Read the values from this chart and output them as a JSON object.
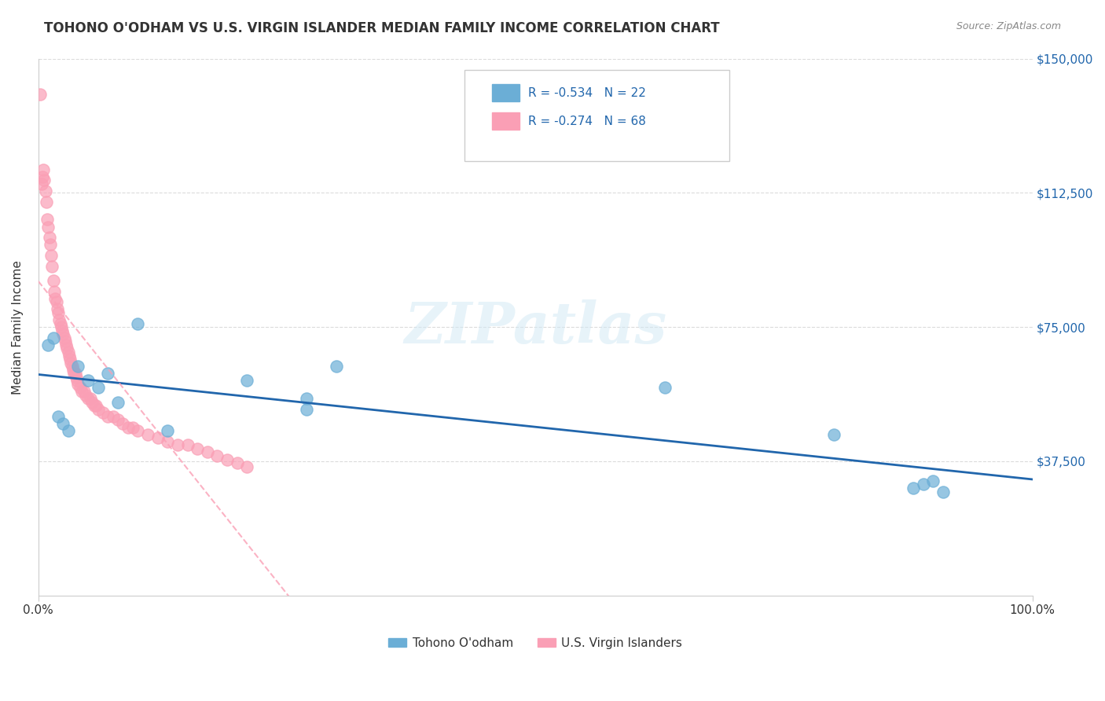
{
  "title": "TOHONO O'ODHAM VS U.S. VIRGIN ISLANDER MEDIAN FAMILY INCOME CORRELATION CHART",
  "source": "Source: ZipAtlas.com",
  "xlabel": "",
  "ylabel": "Median Family Income",
  "xlim": [
    0,
    1.0
  ],
  "ylim": [
    0,
    150000
  ],
  "xtick_labels": [
    "0.0%",
    "100.0%"
  ],
  "ytick_labels": [
    "$37,500",
    "$75,000",
    "$112,500",
    "$150,000"
  ],
  "ytick_values": [
    37500,
    75000,
    112500,
    150000
  ],
  "blue_color": "#6baed6",
  "pink_color": "#fa9fb5",
  "blue_line_color": "#2166ac",
  "pink_line_color": "#f768a1",
  "legend_r_blue": "R = -0.534",
  "legend_n_blue": "N = 22",
  "legend_r_pink": "R = -0.274",
  "legend_n_pink": "N = 68",
  "legend_label_blue": "Tohono O'odham",
  "legend_label_pink": "U.S. Virgin Islanders",
  "watermark": "ZIPatlas",
  "blue_x": [
    0.01,
    0.015,
    0.02,
    0.025,
    0.03,
    0.04,
    0.05,
    0.06,
    0.07,
    0.08,
    0.1,
    0.13,
    0.21,
    0.27,
    0.27,
    0.3,
    0.63,
    0.8,
    0.88,
    0.89,
    0.9,
    0.91
  ],
  "blue_y": [
    70000,
    72000,
    50000,
    48000,
    46000,
    64000,
    60000,
    58000,
    62000,
    54000,
    76000,
    46000,
    60000,
    55000,
    52000,
    64000,
    58000,
    45000,
    30000,
    31000,
    32000,
    29000
  ],
  "pink_x": [
    0.002,
    0.003,
    0.004,
    0.005,
    0.006,
    0.007,
    0.008,
    0.009,
    0.01,
    0.011,
    0.012,
    0.013,
    0.014,
    0.015,
    0.016,
    0.017,
    0.018,
    0.019,
    0.02,
    0.021,
    0.022,
    0.023,
    0.024,
    0.025,
    0.026,
    0.027,
    0.028,
    0.029,
    0.03,
    0.031,
    0.032,
    0.033,
    0.034,
    0.035,
    0.036,
    0.037,
    0.038,
    0.039,
    0.04,
    0.042,
    0.044,
    0.046,
    0.048,
    0.05,
    0.052,
    0.054,
    0.056,
    0.058,
    0.06,
    0.065,
    0.07,
    0.075,
    0.08,
    0.085,
    0.09,
    0.095,
    0.1,
    0.11,
    0.12,
    0.13,
    0.14,
    0.15,
    0.16,
    0.17,
    0.18,
    0.19,
    0.2,
    0.21
  ],
  "pink_y": [
    140000,
    115000,
    117000,
    119000,
    116000,
    113000,
    110000,
    105000,
    103000,
    100000,
    98000,
    95000,
    92000,
    88000,
    85000,
    83000,
    82000,
    80000,
    79000,
    77000,
    76000,
    75000,
    74000,
    73000,
    72000,
    71000,
    70000,
    69000,
    68000,
    67000,
    66000,
    65000,
    64000,
    63000,
    62000,
    62000,
    61000,
    60000,
    59000,
    58000,
    57000,
    57000,
    56000,
    55000,
    55000,
    54000,
    53000,
    53000,
    52000,
    51000,
    50000,
    50000,
    49000,
    48000,
    47000,
    47000,
    46000,
    45000,
    44000,
    43000,
    42000,
    42000,
    41000,
    40000,
    39000,
    38000,
    37000,
    36000
  ]
}
